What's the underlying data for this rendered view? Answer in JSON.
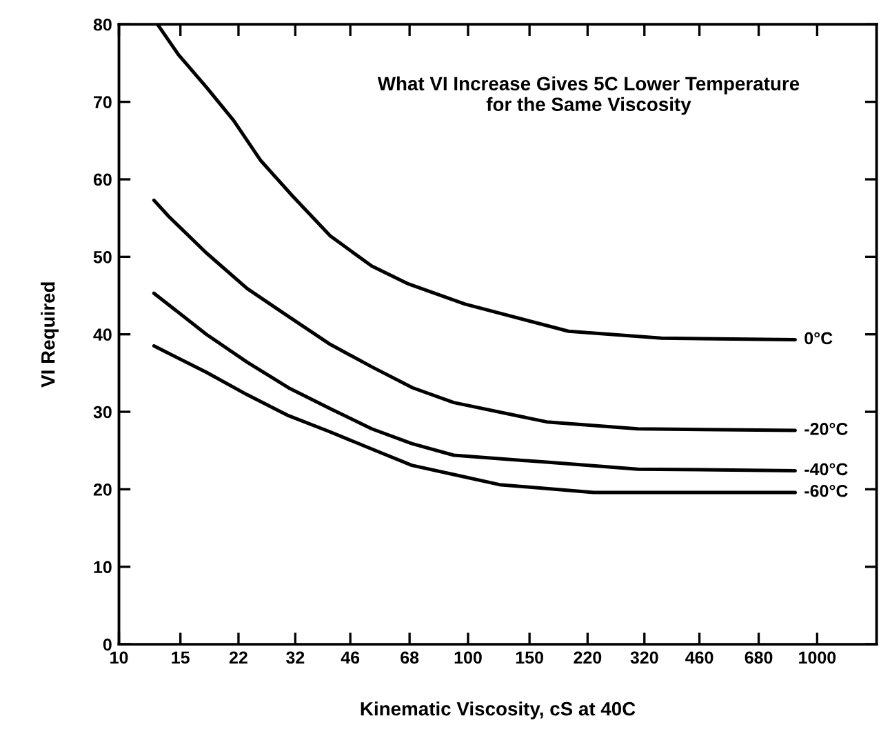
{
  "chart_data": {
    "type": "line",
    "title": "What VI Increase Gives 5C Lower Temperature\nfor the Same Viscosity",
    "xlabel": "Kinematic Viscosity, cS at 40C",
    "ylabel": "VI Required",
    "log": "x",
    "xlim": [
      10,
      1480
    ],
    "xticks": [
      10,
      15,
      22,
      32,
      46,
      68,
      100,
      150,
      220,
      320,
      460,
      680,
      1000
    ],
    "ylim": [
      0,
      80
    ],
    "yticks": [
      0,
      10,
      20,
      30,
      40,
      50,
      60,
      70,
      80
    ],
    "grid": false,
    "legend": "right",
    "marker": "none",
    "line_style": "solid",
    "series": [
      {
        "name": "0°C",
        "color": "#000000",
        "x": [
          12.9,
          14.8,
          17.8,
          21.3,
          25.5,
          31.5,
          40.3,
          53,
          67.5,
          98,
          194,
          358,
          865
        ],
        "values": [
          80,
          76.1,
          71.9,
          67.6,
          62.4,
          57.8,
          52.7,
          48.8,
          46.5,
          43.9,
          40.4,
          39.5,
          39.3
        ]
      },
      {
        "name": "-20°C",
        "color": "#000000",
        "x": [
          12.6,
          13.9,
          17.8,
          23.3,
          30.6,
          40.3,
          53,
          69.4,
          91,
          168,
          306,
          865
        ],
        "values": [
          57.3,
          55.2,
          50.5,
          45.9,
          42.3,
          38.7,
          35.8,
          33.1,
          31.2,
          28.7,
          27.8,
          27.6
        ]
      },
      {
        "name": "-40°C",
        "color": "#000000",
        "x": [
          12.6,
          17.8,
          23.3,
          30.6,
          40.3,
          53,
          69,
          91,
          168,
          306,
          865
        ],
        "values": [
          45.3,
          40,
          36.4,
          33.1,
          30.4,
          27.8,
          25.9,
          24.4,
          23.5,
          22.6,
          22.4
        ]
      },
      {
        "name": "-60°C",
        "color": "#000000",
        "x": [
          12.6,
          17.8,
          23.3,
          30.6,
          40.3,
          53,
          69,
          91,
          123,
          229,
          865
        ],
        "values": [
          38.5,
          35.1,
          32.2,
          29.5,
          27.4,
          25.2,
          23.1,
          21.9,
          20.6,
          19.6,
          19.6
        ]
      }
    ]
  }
}
